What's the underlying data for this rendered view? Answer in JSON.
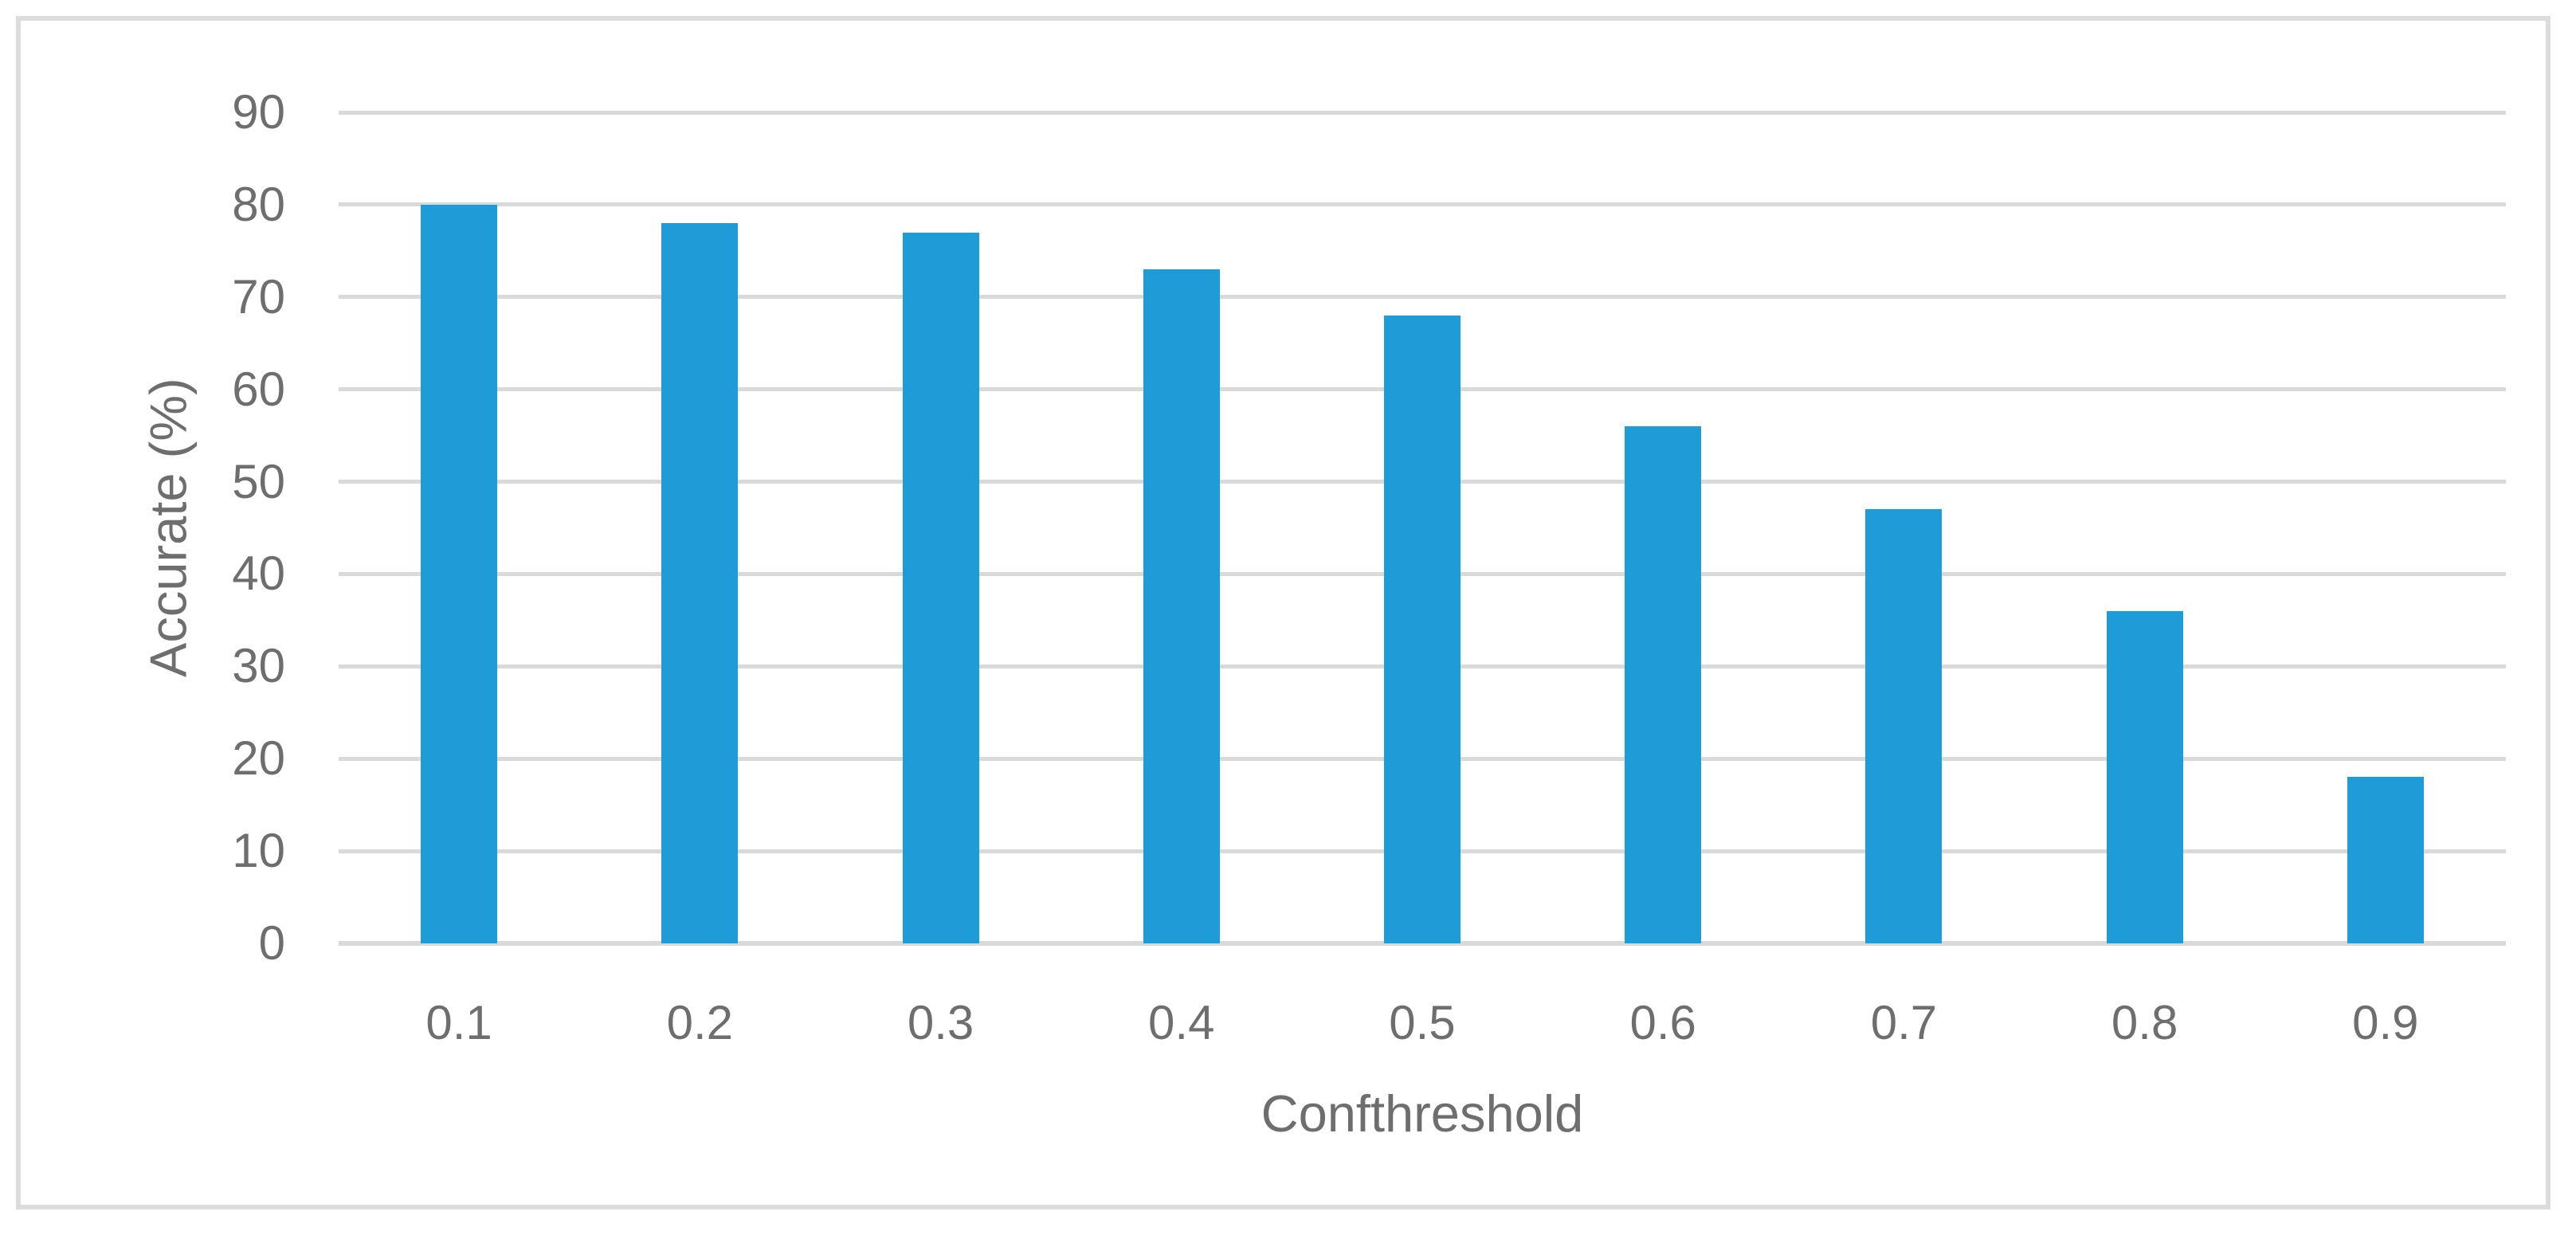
{
  "chart_data": {
    "type": "bar",
    "title": "",
    "categories": [
      "0.1",
      "0.2",
      "0.3",
      "0.4",
      "0.5",
      "0.6",
      "0.7",
      "0.8",
      "0.9"
    ],
    "values": [
      80,
      78,
      77,
      73,
      68,
      56,
      47,
      36,
      18
    ],
    "xlabel": "Confthreshold",
    "ylabel": "Accurate (%)",
    "ylim": [
      0,
      90
    ],
    "ytick_step": 10,
    "yticks": [
      "0",
      "10",
      "20",
      "30",
      "40",
      "50",
      "60",
      "70",
      "80",
      "90"
    ],
    "grid": "horizontal",
    "legend": "none",
    "colors": {
      "bar": "#1e9cd8",
      "gridline": "#d9d9d9",
      "axis_line": "#d9d9d9",
      "text": "#6e6e6e",
      "figure_border": "#dcdcdc",
      "background": "#ffffff"
    }
  }
}
